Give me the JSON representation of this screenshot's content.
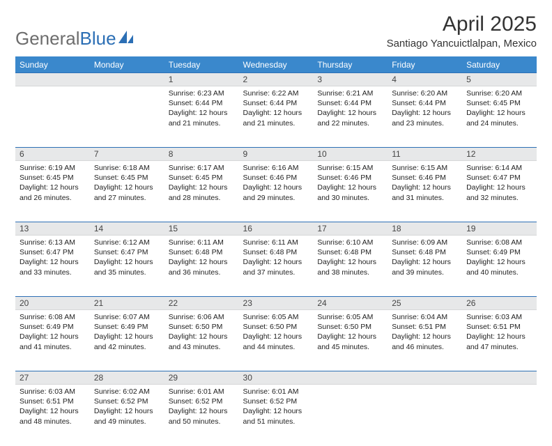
{
  "brand": {
    "name_a": "General",
    "name_b": "Blue"
  },
  "title": "April 2025",
  "location": "Santiago Yancuictlalpan, Mexico",
  "colors": {
    "header_bg": "#3a88cc",
    "daynum_bg": "#e7e8e9",
    "row_border": "#2c6fb5",
    "text": "#222222"
  },
  "weekdays": [
    "Sunday",
    "Monday",
    "Tuesday",
    "Wednesday",
    "Thursday",
    "Friday",
    "Saturday"
  ],
  "weeks": [
    [
      {
        "n": "",
        "sr": "",
        "ss": "",
        "dl": ""
      },
      {
        "n": "",
        "sr": "",
        "ss": "",
        "dl": ""
      },
      {
        "n": "1",
        "sr": "Sunrise: 6:23 AM",
        "ss": "Sunset: 6:44 PM",
        "dl": "Daylight: 12 hours and 21 minutes."
      },
      {
        "n": "2",
        "sr": "Sunrise: 6:22 AM",
        "ss": "Sunset: 6:44 PM",
        "dl": "Daylight: 12 hours and 21 minutes."
      },
      {
        "n": "3",
        "sr": "Sunrise: 6:21 AM",
        "ss": "Sunset: 6:44 PM",
        "dl": "Daylight: 12 hours and 22 minutes."
      },
      {
        "n": "4",
        "sr": "Sunrise: 6:20 AM",
        "ss": "Sunset: 6:44 PM",
        "dl": "Daylight: 12 hours and 23 minutes."
      },
      {
        "n": "5",
        "sr": "Sunrise: 6:20 AM",
        "ss": "Sunset: 6:45 PM",
        "dl": "Daylight: 12 hours and 24 minutes."
      }
    ],
    [
      {
        "n": "6",
        "sr": "Sunrise: 6:19 AM",
        "ss": "Sunset: 6:45 PM",
        "dl": "Daylight: 12 hours and 26 minutes."
      },
      {
        "n": "7",
        "sr": "Sunrise: 6:18 AM",
        "ss": "Sunset: 6:45 PM",
        "dl": "Daylight: 12 hours and 27 minutes."
      },
      {
        "n": "8",
        "sr": "Sunrise: 6:17 AM",
        "ss": "Sunset: 6:45 PM",
        "dl": "Daylight: 12 hours and 28 minutes."
      },
      {
        "n": "9",
        "sr": "Sunrise: 6:16 AM",
        "ss": "Sunset: 6:46 PM",
        "dl": "Daylight: 12 hours and 29 minutes."
      },
      {
        "n": "10",
        "sr": "Sunrise: 6:15 AM",
        "ss": "Sunset: 6:46 PM",
        "dl": "Daylight: 12 hours and 30 minutes."
      },
      {
        "n": "11",
        "sr": "Sunrise: 6:15 AM",
        "ss": "Sunset: 6:46 PM",
        "dl": "Daylight: 12 hours and 31 minutes."
      },
      {
        "n": "12",
        "sr": "Sunrise: 6:14 AM",
        "ss": "Sunset: 6:47 PM",
        "dl": "Daylight: 12 hours and 32 minutes."
      }
    ],
    [
      {
        "n": "13",
        "sr": "Sunrise: 6:13 AM",
        "ss": "Sunset: 6:47 PM",
        "dl": "Daylight: 12 hours and 33 minutes."
      },
      {
        "n": "14",
        "sr": "Sunrise: 6:12 AM",
        "ss": "Sunset: 6:47 PM",
        "dl": "Daylight: 12 hours and 35 minutes."
      },
      {
        "n": "15",
        "sr": "Sunrise: 6:11 AM",
        "ss": "Sunset: 6:48 PM",
        "dl": "Daylight: 12 hours and 36 minutes."
      },
      {
        "n": "16",
        "sr": "Sunrise: 6:11 AM",
        "ss": "Sunset: 6:48 PM",
        "dl": "Daylight: 12 hours and 37 minutes."
      },
      {
        "n": "17",
        "sr": "Sunrise: 6:10 AM",
        "ss": "Sunset: 6:48 PM",
        "dl": "Daylight: 12 hours and 38 minutes."
      },
      {
        "n": "18",
        "sr": "Sunrise: 6:09 AM",
        "ss": "Sunset: 6:48 PM",
        "dl": "Daylight: 12 hours and 39 minutes."
      },
      {
        "n": "19",
        "sr": "Sunrise: 6:08 AM",
        "ss": "Sunset: 6:49 PM",
        "dl": "Daylight: 12 hours and 40 minutes."
      }
    ],
    [
      {
        "n": "20",
        "sr": "Sunrise: 6:08 AM",
        "ss": "Sunset: 6:49 PM",
        "dl": "Daylight: 12 hours and 41 minutes."
      },
      {
        "n": "21",
        "sr": "Sunrise: 6:07 AM",
        "ss": "Sunset: 6:49 PM",
        "dl": "Daylight: 12 hours and 42 minutes."
      },
      {
        "n": "22",
        "sr": "Sunrise: 6:06 AM",
        "ss": "Sunset: 6:50 PM",
        "dl": "Daylight: 12 hours and 43 minutes."
      },
      {
        "n": "23",
        "sr": "Sunrise: 6:05 AM",
        "ss": "Sunset: 6:50 PM",
        "dl": "Daylight: 12 hours and 44 minutes."
      },
      {
        "n": "24",
        "sr": "Sunrise: 6:05 AM",
        "ss": "Sunset: 6:50 PM",
        "dl": "Daylight: 12 hours and 45 minutes."
      },
      {
        "n": "25",
        "sr": "Sunrise: 6:04 AM",
        "ss": "Sunset: 6:51 PM",
        "dl": "Daylight: 12 hours and 46 minutes."
      },
      {
        "n": "26",
        "sr": "Sunrise: 6:03 AM",
        "ss": "Sunset: 6:51 PM",
        "dl": "Daylight: 12 hours and 47 minutes."
      }
    ],
    [
      {
        "n": "27",
        "sr": "Sunrise: 6:03 AM",
        "ss": "Sunset: 6:51 PM",
        "dl": "Daylight: 12 hours and 48 minutes."
      },
      {
        "n": "28",
        "sr": "Sunrise: 6:02 AM",
        "ss": "Sunset: 6:52 PM",
        "dl": "Daylight: 12 hours and 49 minutes."
      },
      {
        "n": "29",
        "sr": "Sunrise: 6:01 AM",
        "ss": "Sunset: 6:52 PM",
        "dl": "Daylight: 12 hours and 50 minutes."
      },
      {
        "n": "30",
        "sr": "Sunrise: 6:01 AM",
        "ss": "Sunset: 6:52 PM",
        "dl": "Daylight: 12 hours and 51 minutes."
      },
      {
        "n": "",
        "sr": "",
        "ss": "",
        "dl": ""
      },
      {
        "n": "",
        "sr": "",
        "ss": "",
        "dl": ""
      },
      {
        "n": "",
        "sr": "",
        "ss": "",
        "dl": ""
      }
    ]
  ]
}
